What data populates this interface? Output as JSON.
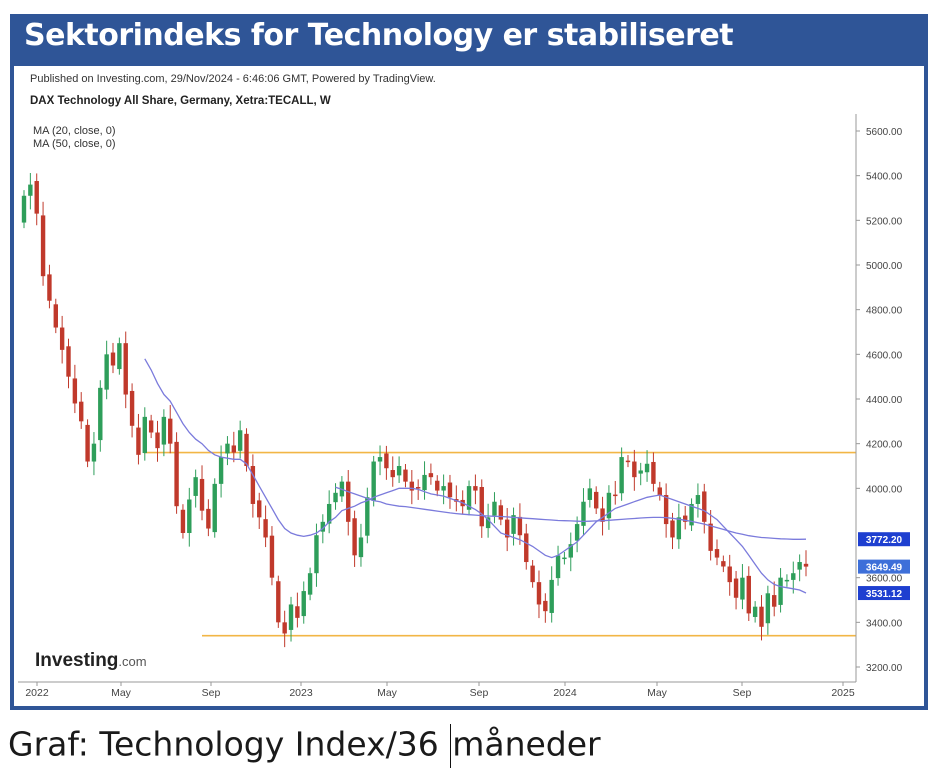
{
  "banner": {
    "title": "Sektorindeks for Technology er stabiliseret"
  },
  "caption": {
    "text_before": "Graf: Technology Index/36 ",
    "text_after": "måneder"
  },
  "colors": {
    "frame": "#2f5597",
    "up_candle": "#2e9e5a",
    "down_candle": "#c0392b",
    "ma_line": "#7b7bdc",
    "level_line": "#f2b646",
    "label_blue": "#1e3fd0",
    "label_light_blue": "#3d6fd9"
  },
  "chart_data": {
    "type": "candlestick",
    "published": "Published on Investing.com, 29/Nov/2024 - 6:46:06 GMT, Powered by TradingView.",
    "instrument": "DAX Technology All Share, Germany, Xetra:TECALL, W",
    "legend": [
      "MA (20, close, 0)",
      "MA (50, close, 0)"
    ],
    "brand": "Investing",
    "brand_suffix": ".com",
    "y_ticks": [
      "5600.00",
      "5400.00",
      "5200.00",
      "5000.00",
      "4800.00",
      "4600.00",
      "4400.00",
      "4200.00",
      "4000.00",
      "3600.00",
      "3400.00",
      "3200.00"
    ],
    "y_tick_values": [
      5600,
      5400,
      5200,
      5000,
      4800,
      4600,
      4400,
      4200,
      4000,
      3600,
      3400,
      3200
    ],
    "ylim": [
      3200,
      5600
    ],
    "x_ticks": [
      "2022",
      "May",
      "Sep",
      "2023",
      "May",
      "Sep",
      "2024",
      "May",
      "Sep",
      "2025"
    ],
    "price_labels": [
      {
        "text": "3772.20",
        "value": 3772.2,
        "style": "dark"
      },
      {
        "text": "3649.49",
        "value": 3649.49,
        "style": "light"
      },
      {
        "text": "3531.12",
        "value": 3531.12,
        "style": "dark"
      }
    ],
    "horizontal_levels": [
      4160,
      3340
    ],
    "weekly_close": [
      5310,
      5360,
      5230,
      4950,
      4840,
      4720,
      4620,
      4500,
      4380,
      4300,
      4120,
      4200,
      4450,
      4600,
      4550,
      4650,
      4420,
      4280,
      4150,
      4320,
      4250,
      4180,
      4320,
      4200,
      3920,
      3800,
      3950,
      4050,
      3900,
      3820,
      4020,
      4140,
      4200,
      4160,
      4260,
      4100,
      3930,
      3870,
      3780,
      3600,
      3400,
      3350,
      3480,
      3420,
      3540,
      3620,
      3790,
      3850,
      3930,
      3980,
      4030,
      3850,
      3700,
      3780,
      3960,
      4120,
      4140,
      4090,
      4050,
      4100,
      4030,
      3990,
      4000,
      4060,
      4050,
      3990,
      4010,
      3960,
      3940,
      3920,
      4010,
      3990,
      3830,
      3870,
      3940,
      3860,
      3780,
      3880,
      3790,
      3670,
      3580,
      3480,
      3450,
      3590,
      3700,
      3690,
      3750,
      3840,
      3940,
      4000,
      3910,
      3850,
      3980,
      3970,
      4140,
      4120,
      4050,
      4080,
      4110,
      4020,
      3970,
      3840,
      3780,
      3870,
      3850,
      3930,
      3970,
      3850,
      3720,
      3690,
      3650,
      3580,
      3510,
      3600,
      3440,
      3470,
      3380,
      3530,
      3470,
      3600,
      3590,
      3620,
      3670,
      3649.49
    ],
    "ma20": [
      null,
      null,
      null,
      null,
      null,
      null,
      null,
      null,
      null,
      null,
      null,
      null,
      null,
      null,
      null,
      null,
      null,
      null,
      null,
      4580,
      4530,
      4470,
      4420,
      4390,
      4340,
      4290,
      4250,
      4220,
      4200,
      4170,
      4150,
      4140,
      4135,
      4130,
      4130,
      4110,
      4060,
      4010,
      3960,
      3910,
      3860,
      3820,
      3800,
      3790,
      3785,
      3790,
      3800,
      3820,
      3850,
      3870,
      3900,
      3910,
      3920,
      3935,
      3945,
      3960,
      3970,
      3980,
      3990,
      4000,
      4000,
      4000,
      3995,
      3985,
      3975,
      3970,
      3965,
      3955,
      3945,
      3935,
      3920,
      3905,
      3885,
      3860,
      3830,
      3800,
      3790,
      3780,
      3770,
      3755,
      3740,
      3720,
      3700,
      3690,
      3700,
      3720,
      3740,
      3760,
      3790,
      3820,
      3850,
      3870,
      3890,
      3910,
      3920,
      3930,
      3940,
      3950,
      3960,
      3965,
      3970,
      3960,
      3950,
      3940,
      3930,
      3920,
      3910,
      3900,
      3880,
      3860,
      3830,
      3800,
      3770,
      3740,
      3700,
      3660,
      3620,
      3590,
      3570,
      3560,
      3555,
      3550,
      3545,
      3531.12
    ],
    "ma50": [
      null,
      null,
      null,
      null,
      null,
      null,
      null,
      null,
      null,
      null,
      null,
      null,
      null,
      null,
      null,
      null,
      null,
      null,
      null,
      null,
      null,
      null,
      null,
      null,
      null,
      null,
      null,
      null,
      null,
      null,
      null,
      null,
      null,
      null,
      null,
      null,
      null,
      null,
      null,
      null,
      null,
      null,
      null,
      null,
      null,
      null,
      null,
      null,
      null,
      4005,
      3995,
      3985,
      3975,
      3965,
      3955,
      3945,
      3940,
      3930,
      3925,
      3920,
      3918,
      3914,
      3910,
      3906,
      3902,
      3898,
      3894,
      3890,
      3887,
      3884,
      3882,
      3880,
      3878,
      3876,
      3875,
      3874,
      3872,
      3870,
      3868,
      3866,
      3864,
      3862,
      3860,
      3858,
      3856,
      3855,
      3854,
      3853,
      3852,
      3853,
      3854,
      3855,
      3857,
      3859,
      3861,
      3863,
      3865,
      3867,
      3869,
      3870,
      3870,
      3869,
      3866,
      3862,
      3857,
      3852,
      3846,
      3840,
      3832,
      3824,
      3816,
      3808,
      3800,
      3794,
      3788,
      3784,
      3780,
      3778,
      3776,
      3774,
      3773,
      3772,
      3772,
      3772.2
    ]
  }
}
